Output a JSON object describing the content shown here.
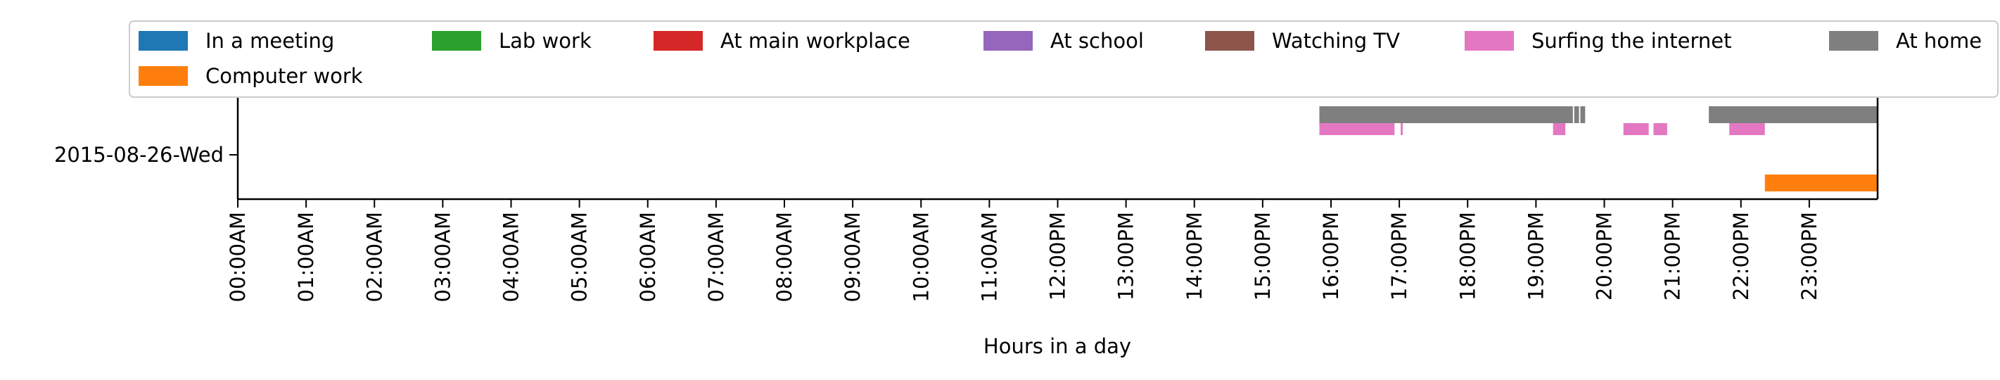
{
  "chart_data": {
    "type": "timeline",
    "xlabel": "Hours in a day",
    "ylabel": "",
    "xlim": [
      0,
      24
    ],
    "x_tick_labels": [
      "00:00AM",
      "01:00AM",
      "02:00AM",
      "03:00AM",
      "04:00AM",
      "05:00AM",
      "06:00AM",
      "07:00AM",
      "08:00AM",
      "09:00AM",
      "10:00AM",
      "11:00AM",
      "12:00PM",
      "13:00PM",
      "14:00PM",
      "15:00PM",
      "16:00PM",
      "17:00PM",
      "18:00PM",
      "19:00PM",
      "20:00PM",
      "21:00PM",
      "22:00PM",
      "23:00PM"
    ],
    "categories": [
      "2015-08-26-Wed"
    ],
    "legend_placement": "top",
    "legend": [
      {
        "name": "In a meeting",
        "color": "#1f77b4"
      },
      {
        "name": "Lab work",
        "color": "#2ca02c"
      },
      {
        "name": "At main workplace",
        "color": "#d62728"
      },
      {
        "name": "At school",
        "color": "#9467bd"
      },
      {
        "name": "Watching TV",
        "color": "#8c564b"
      },
      {
        "name": "Surfing the internet",
        "color": "#e377c2"
      },
      {
        "name": "At home",
        "color": "#7f7f7f"
      },
      {
        "name": "Computer work",
        "color": "#ff7f0e"
      }
    ],
    "series": [
      {
        "name": "At home",
        "color": "#7f7f7f",
        "level": "upper",
        "intervals": [
          [
            15.83,
            19.54
          ],
          [
            19.56,
            19.63
          ],
          [
            19.65,
            19.72
          ],
          [
            21.53,
            24.0
          ]
        ]
      },
      {
        "name": "Surfing the internet",
        "color": "#e377c2",
        "level": "middle",
        "intervals": [
          [
            15.83,
            16.93
          ],
          [
            17.02,
            17.05
          ],
          [
            19.25,
            19.43
          ],
          [
            20.28,
            20.65
          ],
          [
            20.72,
            20.92
          ],
          [
            21.83,
            22.35
          ]
        ]
      },
      {
        "name": "Computer work",
        "color": "#ff7f0e",
        "level": "lower",
        "intervals": [
          [
            22.35,
            24.0
          ]
        ]
      }
    ]
  }
}
